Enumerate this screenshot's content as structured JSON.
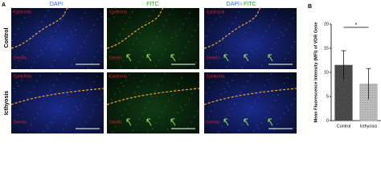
{
  "figure": {
    "panel_a": "A",
    "panel_b": "B",
    "columns": [
      "DAPI",
      "FITC"
    ],
    "merged": [
      "DAPI",
      "+",
      "FITC"
    ],
    "rows": [
      "Control",
      "Icthyosis"
    ],
    "regions": [
      "Epidermis",
      "Dermis"
    ]
  },
  "chart_data": {
    "type": "bar",
    "title": "",
    "y_label": "Mean Fluorescence Intensity (MFI) of VDR Gene",
    "categories": [
      "Control",
      "Icthyosis"
    ],
    "values": [
      11.5,
      7.6
    ],
    "errors": [
      3,
      3.2
    ],
    "colors": [
      "#555555",
      "#a8a8a8"
    ],
    "ylim": [
      0,
      20
    ],
    "yticks": [
      0,
      5,
      10,
      15,
      20
    ],
    "annotation": "*"
  }
}
